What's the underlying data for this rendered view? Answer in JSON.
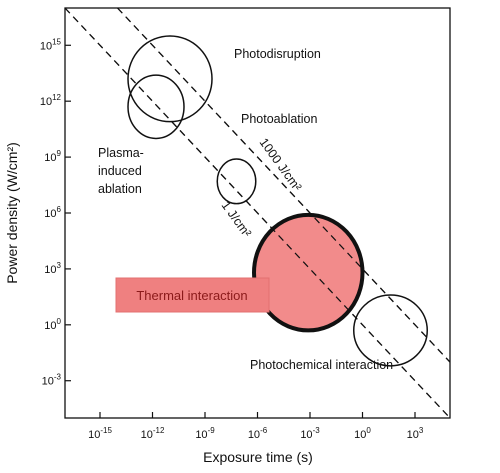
{
  "chart_data": {
    "type": "scatter",
    "xlabel": "Exposure time (s)",
    "ylabel": "Power density (W/cm²)",
    "x_scale": "log",
    "y_scale": "log",
    "xlim_exp": [
      -17,
      5
    ],
    "ylim_exp": [
      -5,
      17
    ],
    "x_ticks": [
      {
        "base": "10",
        "exp": "-15",
        "value": -15
      },
      {
        "base": "10",
        "exp": "-12",
        "value": -12
      },
      {
        "base": "10",
        "exp": "-9",
        "value": -9
      },
      {
        "base": "10",
        "exp": "-6",
        "value": -6
      },
      {
        "base": "10",
        "exp": "-3",
        "value": -3
      },
      {
        "base": "10",
        "exp": "0",
        "value": 0
      },
      {
        "base": "10",
        "exp": "3",
        "value": 3
      }
    ],
    "y_ticks": [
      {
        "base": "10",
        "exp": "15",
        "value": 15
      },
      {
        "base": "10",
        "exp": "12",
        "value": 12
      },
      {
        "base": "10",
        "exp": "9",
        "value": 9
      },
      {
        "base": "10",
        "exp": "6",
        "value": 6
      },
      {
        "base": "10",
        "exp": "3",
        "value": 3
      },
      {
        "base": "10",
        "exp": "0",
        "value": 0
      },
      {
        "base": "10",
        "exp": "-3",
        "value": -3
      }
    ],
    "fluence_lines": [
      {
        "label": "1 J/cm²",
        "log_fluence": 0
      },
      {
        "label": "1000 J/cm²",
        "log_fluence": 3
      }
    ],
    "regions": [
      {
        "name": "Photodisruption",
        "log_t_center": -11.0,
        "log_p_center": 13.2,
        "log_t_radius": 2.4,
        "log_p_radius": 2.3,
        "highlighted": false
      },
      {
        "name": "Photoablation",
        "log_t_center": -11.8,
        "log_p_center": 11.7,
        "log_t_radius": 1.6,
        "log_p_radius": 1.7,
        "highlighted": false
      },
      {
        "name": "Plasma-induced ablation",
        "log_t_center": -7.2,
        "log_p_center": 7.7,
        "log_t_radius": 1.1,
        "log_p_radius": 1.2,
        "highlighted": false
      },
      {
        "name": "Thermal interaction",
        "log_t_center": -3.1,
        "log_p_center": 2.8,
        "log_t_radius": 3.1,
        "log_p_radius": 3.1,
        "highlighted": true
      },
      {
        "name": "Photochemical interaction",
        "log_t_center": 1.6,
        "log_p_center": -0.3,
        "log_t_radius": 2.1,
        "log_p_radius": 1.9,
        "highlighted": false
      }
    ],
    "annotations": {
      "photodisruption": "Photodisruption",
      "photoablation": "Photoablation",
      "plasma_line1": "Plasma-",
      "plasma_line2": "induced",
      "plasma_line3": "ablation",
      "thermal": "Thermal interaction",
      "photochemical": "Photochemical interaction",
      "line_1000": "1000 J/cm²",
      "line_1": "1 J/cm²"
    },
    "colors": {
      "highlight_fill": "#f28b8b",
      "highlight_box": "#ef8080",
      "highlight_text": "#8b1a1a",
      "ink": "#111111"
    }
  }
}
